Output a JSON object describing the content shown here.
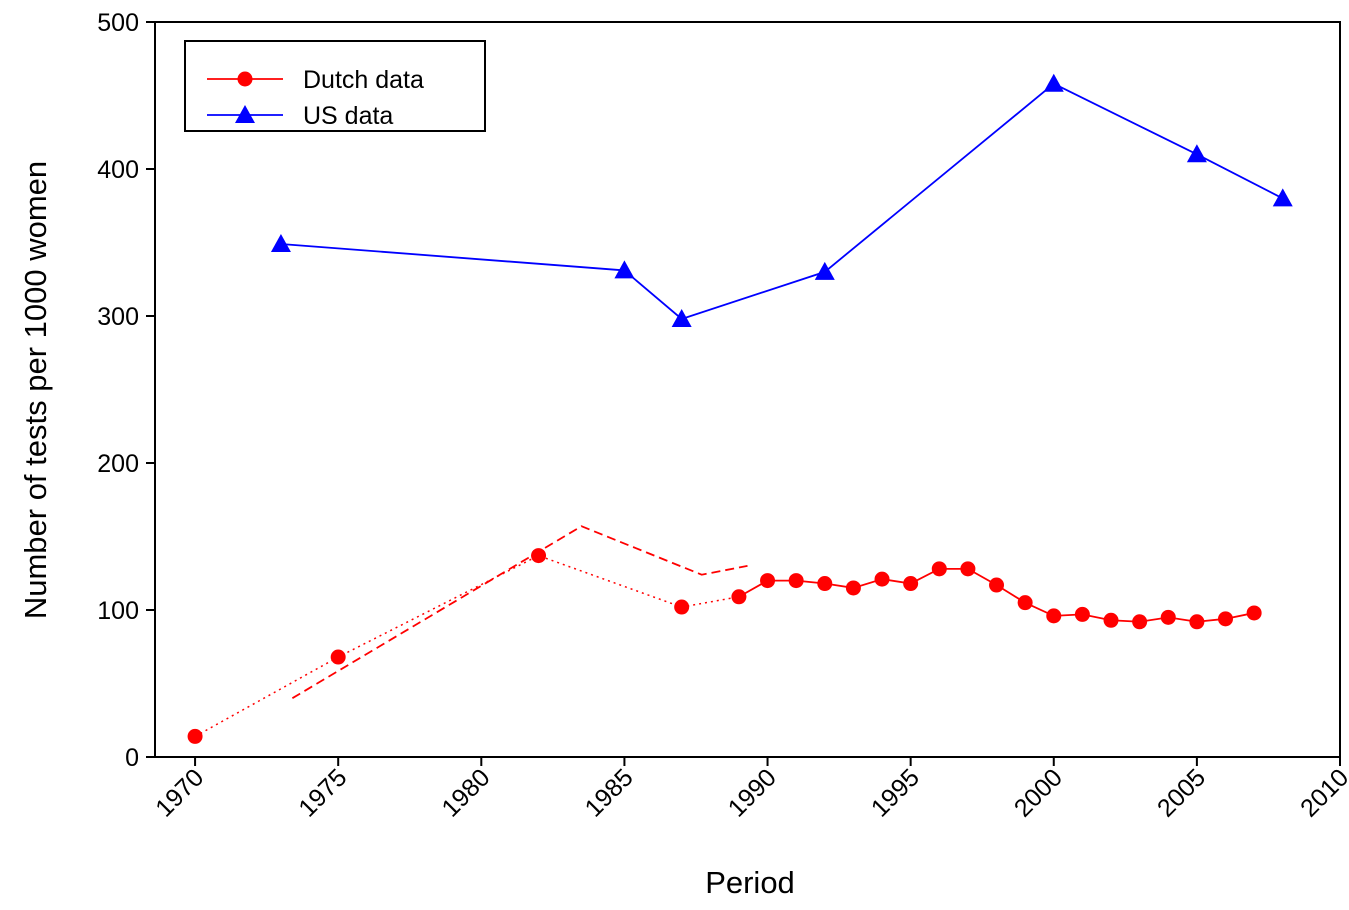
{
  "chart_data": {
    "type": "line",
    "xlabel": "Period",
    "ylabel": "Number of tests per 1000 women",
    "xlim": [
      1968.6,
      2010
    ],
    "xticks": [
      1970,
      1975,
      1980,
      1985,
      1990,
      1995,
      2000,
      2005,
      2010
    ],
    "ylim": [
      0,
      500
    ],
    "yticks": [
      0,
      100,
      200,
      300,
      400,
      500
    ],
    "legend": "upper left",
    "series": [
      {
        "name": "Dutch data",
        "color": "#ff0000",
        "marker": "circle",
        "dotted_until_x": 1989,
        "x": [
          1970,
          1975,
          1982,
          1987,
          1989,
          1990,
          1991,
          1992,
          1993,
          1994,
          1995,
          1996,
          1997,
          1998,
          1999,
          2000,
          2001,
          2002,
          2003,
          2004,
          2005,
          2006,
          2007
        ],
        "values": [
          14,
          68,
          137,
          102,
          109,
          120,
          120,
          118,
          115,
          121,
          118,
          128,
          128,
          117,
          105,
          96,
          97,
          93,
          92,
          95,
          92,
          94,
          98
        ]
      },
      {
        "name": "US data",
        "color": "#0000ff",
        "marker": "triangle",
        "x": [
          1973,
          1985,
          1987,
          1992,
          2000,
          2005,
          2008
        ],
        "values": [
          349,
          331,
          298,
          330,
          458,
          410,
          380
        ]
      },
      {
        "color": "#ff0000",
        "dash": "dashed",
        "x": [
          1973.4,
          1983.5,
          1987.7,
          1989.3
        ],
        "values": [
          40,
          157,
          124,
          130
        ]
      }
    ]
  }
}
